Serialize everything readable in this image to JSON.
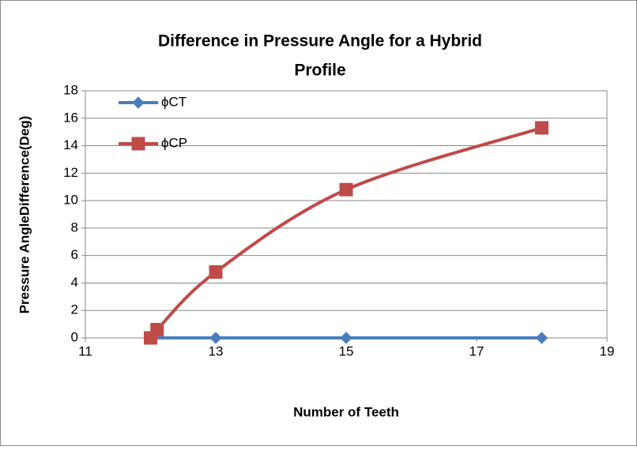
{
  "chart_data": {
    "type": "scatter",
    "title": [
      "Difference in Pressure Angle for a Hybrid",
      "Profile"
    ],
    "x_label": "Number of Teeth",
    "y_label": "Pressure AngleDifference(Deg)",
    "series": [
      {
        "name": "ϕCT",
        "color": "#4a7ebb",
        "marker": "diamond",
        "x": [
          12,
          13,
          15,
          18
        ],
        "values": [
          0,
          0,
          0,
          0
        ]
      },
      {
        "name": "ϕCP",
        "color": "#be4b48",
        "marker": "square",
        "x": [
          12,
          12.1,
          13,
          15,
          18
        ],
        "values": [
          0,
          0.6,
          4.8,
          10.8,
          15.3
        ]
      }
    ],
    "xlim": [
      11,
      19
    ],
    "xticks": [
      11,
      13,
      15,
      17,
      19
    ],
    "ylim": [
      0,
      18
    ],
    "yticks": [
      0,
      2,
      4,
      6,
      8,
      10,
      12,
      14,
      16,
      18
    ],
    "grid": true,
    "smooth": true,
    "legend": "top-left"
  }
}
